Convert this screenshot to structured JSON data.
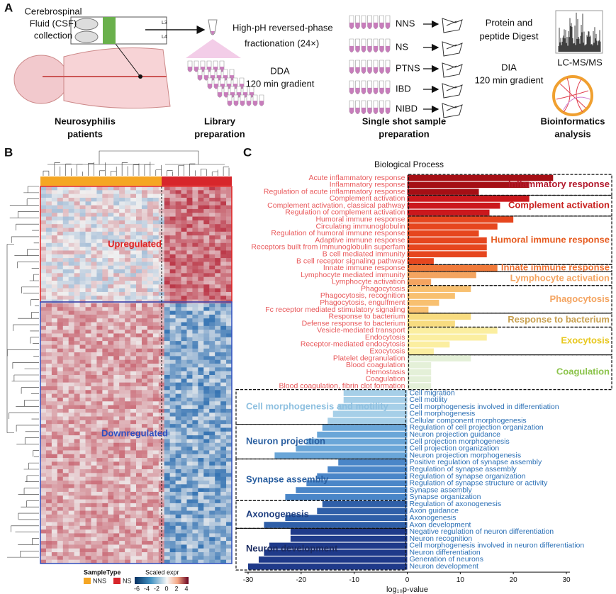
{
  "panel_labels": [
    "A",
    "B",
    "C"
  ],
  "workflow": {
    "csf_label": [
      "Cerebrospinal",
      "Fluid (CSF)",
      "collection"
    ],
    "vertebra_labels": [
      "L3",
      "L4"
    ],
    "fractionation": [
      "High-pH reversed-phase",
      "fractionation (24×)"
    ],
    "dda": [
      "DDA",
      "120 min gradient"
    ],
    "groups": [
      "NNS",
      "NS",
      "PTNS",
      "IBD",
      "NIBD"
    ],
    "digest": [
      "Protein and",
      "peptide Digest"
    ],
    "dia": [
      "DIA",
      "120 min gradient"
    ],
    "ms": "LC-MS/MS",
    "captions": [
      [
        "Neurosyphilis",
        "patients"
      ],
      [
        "Library",
        "preparation"
      ],
      [
        "Single shot sample",
        "preparation"
      ],
      [
        "Bioinformatics",
        "analysis"
      ]
    ]
  },
  "heatmap": {
    "cluster_labels": [
      "Upregulated",
      "Downregulated"
    ],
    "legend_title": "SampleType",
    "sample_types": [
      {
        "name": "NNS",
        "color": "#f5a623"
      },
      {
        "name": "NS",
        "color": "#d7262b"
      }
    ],
    "scale_title": "Scaled expr",
    "scale_ticks": [
      -6,
      -4,
      -2,
      0,
      2,
      4
    ]
  },
  "chart_data": {
    "type": "bar",
    "orientation": "horizontal",
    "title": "Biological Process",
    "x_label": "log₁₀p-value",
    "xlim": [
      -33,
      33
    ],
    "xticks": [
      -30,
      -20,
      -10,
      0,
      10,
      20,
      30
    ],
    "series": [
      {
        "name": "Inflammatory response",
        "color": "#a50f15",
        "label_color": "#b2182b",
        "text_color": "#e8585a",
        "categories": [
          "Acute inflammatory response",
          "Inflammatory response",
          "Regulation of acute inflammatory response"
        ],
        "values": [
          27.5,
          23,
          13.5
        ]
      },
      {
        "name": "Complement activation",
        "color": "#cb181d",
        "label_color": "#c8201e",
        "text_color": "#e8585a",
        "categories": [
          "Complement activation",
          "Complement activation, classical pathway",
          "Regulation of complement activation"
        ],
        "values": [
          23,
          17.5,
          15.5
        ]
      },
      {
        "name": "Humoral immune response",
        "color": "#e6461e",
        "label_color": "#e65a1e",
        "text_color": "#e8585a",
        "categories": [
          "Humoral immune response",
          "Circulating immunoglobulin",
          "Regulation of humoral immune response",
          "Adaptive immune response",
          "Receptors built from immunoglobulin superfam",
          "B cell mediated immunity",
          "B cell receptor signaling pathway"
        ],
        "values": [
          20,
          17,
          13.5,
          15,
          15,
          15,
          5
        ]
      },
      {
        "name": "Innate immune response",
        "color": "#f07a3a",
        "label_color": "#f07030",
        "text_color": "#e8585a",
        "categories": [
          "Innate immune response"
        ],
        "values": [
          17
        ]
      },
      {
        "name": "Lymphocyte activation",
        "color": "#f4a460",
        "label_color": "#f4a460",
        "text_color": "#e8585a",
        "categories": [
          "Lymphocyte mediated immunity",
          "Lymphocyte activation"
        ],
        "values": [
          13,
          4.5
        ]
      },
      {
        "name": "Phagocytosis",
        "color": "#f8c070",
        "label_color": "#f4a460",
        "text_color": "#e8585a",
        "categories": [
          "Phagocytosis",
          "Phagocytosis, recognition",
          "Phagocytosis, engulfment",
          "Fc receptor mediated stimulatory signaling"
        ],
        "values": [
          12,
          9,
          6,
          4
        ]
      },
      {
        "name": "Response to bacterium",
        "color": "#f8dc80",
        "label_color": "#c8a050",
        "text_color": "#e8585a",
        "categories": [
          "Response to bacterium",
          "Defense response to bacterium"
        ],
        "values": [
          12,
          9
        ]
      },
      {
        "name": "Exocytosis",
        "color": "#fbeea0",
        "label_color": "#e8c820",
        "text_color": "#e8585a",
        "categories": [
          "Vesicle-mediated transport",
          "Endocytosis",
          "Receptor-mediated endocytosis",
          "Exocytosis"
        ],
        "values": [
          17,
          15,
          8,
          5
        ]
      },
      {
        "name": "Coagulation",
        "color": "#e4f0d8",
        "label_color": "#8bc34a",
        "text_color": "#e8585a",
        "categories": [
          "Platelet degranulation",
          "Blood coagulation",
          "Hemostasis",
          "Coagulation",
          "Blood coagulation, fibrin clot formation"
        ],
        "values": [
          12,
          4.5,
          4.5,
          4.5,
          4.5
        ]
      },
      {
        "name": "Cell morphogenesis and motility",
        "color": "#a6cfe8",
        "label_color": "#8ec0e0",
        "text_color": "#2a6fb5",
        "categories": [
          "Cell migration",
          "Cell motility",
          "Cell morphogenesis involved in differentiation",
          "Cell morphogenesis",
          "Cellular component morphogenesis"
        ],
        "values": [
          -12,
          -12,
          -13,
          -14,
          -15
        ]
      },
      {
        "name": "Neuron projection",
        "color": "#6aa6d8",
        "label_color": "#2a5fa0",
        "text_color": "#2a6fb5",
        "categories": [
          "Regulation of cell projection organization",
          "Neuron projection guidance",
          "Cell projection morphogenesis",
          "Cell projection organization",
          "Neuron projection morphogenesis"
        ],
        "values": [
          -16,
          -17,
          -19,
          -21,
          -25
        ]
      },
      {
        "name": "Synapse assembly",
        "color": "#4a86c8",
        "label_color": "#2a5fa0",
        "text_color": "#2a6fb5",
        "categories": [
          "Positive regulation of synapse assembly",
          "Regulation of synapse assembly",
          "Regulation of synapse organization",
          "Regulation of synapse structure or activity",
          "Synapse assembly",
          "Synapse organization"
        ],
        "values": [
          -13,
          -15,
          -17,
          -19,
          -21,
          -23
        ]
      },
      {
        "name": "Axonogenesis",
        "color": "#2f5fa8",
        "label_color": "#1f3f80",
        "text_color": "#2a6fb5",
        "categories": [
          "Regulation of axonogenesis",
          "Axon guidance",
          "Axonogenesis",
          "Axon development"
        ],
        "values": [
          -16,
          -17,
          -23,
          -27
        ]
      },
      {
        "name": "Neuron development",
        "color": "#1f3a8a",
        "label_color": "#1a2a60",
        "text_color": "#2a6fb5",
        "categories": [
          "Negative regulation of neuron differentiation",
          "Neuron recognition",
          "Cell morphogenesis involved in neuron differentiation",
          "Neuron differentiation",
          "Generation of neurons",
          "Neuron development"
        ],
        "values": [
          -22,
          -22,
          -26,
          -27,
          -28,
          -30
        ]
      }
    ]
  }
}
